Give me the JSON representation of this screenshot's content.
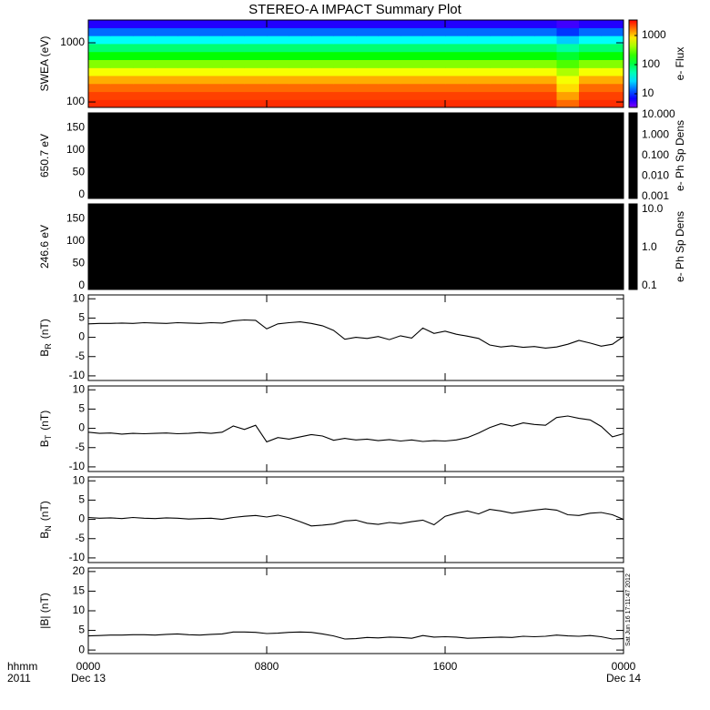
{
  "title": "STEREO-A IMPACT Summary Plot",
  "stamp": "Sat Jun 16 17:11:47 2012",
  "time_axis": {
    "label": "hhmm",
    "year": "2011"
  },
  "chart_data": [
    {
      "type": "spectrogram",
      "ylabel": "SWEA (eV)",
      "ylog": true,
      "ylim": [
        81,
        2425
      ],
      "yticks": [
        100,
        1000
      ],
      "xlim": [
        0,
        24
      ],
      "colormap": "rainbow",
      "xbins": [
        0,
        1,
        2,
        3,
        4,
        5,
        6,
        7,
        8,
        9,
        10,
        11,
        12,
        13,
        14,
        15,
        16,
        17,
        18,
        19,
        20,
        21,
        22,
        23,
        24
      ],
      "ybins": [
        81,
        110,
        150,
        205,
        280,
        380,
        520,
        710,
        970,
        1320,
        1800,
        2425
      ],
      "z": [
        [
          2600,
          2600,
          2600,
          2600,
          2600,
          2600,
          2600,
          2600,
          2600,
          2600,
          2600,
          2600,
          2600,
          2600,
          2600,
          2600,
          2600,
          2600,
          2600,
          2600,
          2600,
          1800,
          2600,
          2600
        ],
        [
          2300,
          2300,
          2300,
          2300,
          2300,
          2300,
          2300,
          2300,
          2300,
          2300,
          2300,
          2300,
          2300,
          2300,
          2300,
          2300,
          2300,
          2300,
          2300,
          2300,
          2300,
          1300,
          2300,
          2300
        ],
        [
          1800,
          1800,
          1800,
          1800,
          1800,
          1800,
          1800,
          1800,
          1800,
          1800,
          1800,
          1800,
          1800,
          1800,
          1800,
          1800,
          1800,
          1800,
          1800,
          1800,
          1800,
          900,
          1800,
          1800
        ],
        [
          1200,
          1200,
          1200,
          1200,
          1200,
          1200,
          1200,
          1200,
          1200,
          1200,
          1200,
          1200,
          1200,
          1200,
          1200,
          1200,
          1200,
          1200,
          1200,
          1200,
          1200,
          700,
          1200,
          1200
        ],
        [
          700,
          700,
          700,
          700,
          700,
          700,
          700,
          700,
          700,
          700,
          700,
          700,
          700,
          700,
          700,
          700,
          700,
          700,
          700,
          700,
          700,
          450,
          700,
          700
        ],
        [
          350,
          350,
          350,
          350,
          350,
          350,
          350,
          350,
          350,
          350,
          350,
          350,
          350,
          350,
          350,
          350,
          350,
          350,
          350,
          350,
          350,
          250,
          350,
          350
        ],
        [
          160,
          160,
          160,
          160,
          160,
          160,
          160,
          160,
          160,
          160,
          160,
          160,
          160,
          160,
          160,
          160,
          160,
          160,
          160,
          160,
          160,
          120,
          160,
          160
        ],
        [
          80,
          80,
          80,
          80,
          80,
          80,
          80,
          80,
          80,
          80,
          80,
          80,
          80,
          80,
          80,
          80,
          80,
          80,
          80,
          80,
          80,
          60,
          80,
          80
        ],
        [
          35,
          35,
          35,
          35,
          35,
          35,
          35,
          35,
          35,
          35,
          35,
          35,
          35,
          35,
          35,
          35,
          35,
          35,
          35,
          35,
          35,
          25,
          35,
          35
        ],
        [
          14,
          14,
          14,
          14,
          14,
          14,
          14,
          14,
          14,
          14,
          14,
          14,
          14,
          14,
          14,
          14,
          14,
          14,
          14,
          14,
          14,
          10,
          14,
          14
        ],
        [
          6,
          6,
          6,
          6,
          6,
          6,
          6,
          6,
          6,
          6,
          6,
          6,
          6,
          6,
          6,
          6,
          6,
          6,
          6,
          6,
          6,
          5,
          6,
          6
        ]
      ],
      "colorbar": {
        "label": "e- Flux",
        "zlim": [
          3.4,
          3400
        ],
        "zticks": [
          10,
          100,
          1000
        ]
      }
    },
    {
      "type": "spectrogram",
      "ylabel": "650.7 eV",
      "ylim": [
        -8,
        183
      ],
      "yticks": [
        0,
        50,
        100,
        150
      ],
      "xlim": [
        0,
        24
      ],
      "fill": "#000000",
      "colorbar": {
        "label": "e- Ph Sp Dens",
        "color": "#000000",
        "zlim": [
          0.0008,
          12
        ],
        "zticks": [
          {
            "value": 10,
            "label": "10.000"
          },
          {
            "value": 1,
            "label": "1.000"
          },
          {
            "value": 0.1,
            "label": "0.100"
          },
          {
            "value": 0.01,
            "label": "0.010"
          },
          {
            "value": 0.001,
            "label": "0.001"
          }
        ]
      }
    },
    {
      "type": "spectrogram",
      "ylabel": "246.6 eV",
      "ylim": [
        -8,
        183
      ],
      "yticks": [
        0,
        50,
        100,
        150
      ],
      "xlim": [
        0,
        24
      ],
      "fill": "#000000",
      "colorbar": {
        "label": "e- Ph Sp Dens",
        "color": "#000000",
        "zlim": [
          0.08,
          13.8
        ],
        "zticks": [
          {
            "value": 10,
            "label": "10.0"
          },
          {
            "value": 1,
            "label": "1.0"
          },
          {
            "value": 0.1,
            "label": "0.1"
          }
        ]
      }
    },
    {
      "type": "line",
      "ylabel": {
        "base": "B",
        "sub": "R",
        "unit": "(nT)"
      },
      "ylim": [
        -11.2,
        11
      ],
      "yticks": [
        -10,
        -5,
        0,
        5,
        10
      ],
      "xlim": [
        0,
        24
      ],
      "color": "#000000",
      "x": [
        0,
        0.5,
        1,
        1.5,
        2,
        2.5,
        3,
        3.5,
        4,
        4.5,
        5,
        5.5,
        6,
        6.5,
        7,
        7.5,
        8,
        8.5,
        9,
        9.5,
        10,
        10.5,
        11,
        11.5,
        12,
        12.5,
        13,
        13.5,
        14,
        14.5,
        15,
        15.5,
        16,
        16.5,
        17,
        17.5,
        18,
        18.5,
        19,
        19.5,
        20,
        20.5,
        21,
        21.5,
        22,
        22.5,
        23,
        23.5,
        24
      ],
      "values": [
        3.5,
        3.6,
        3.6,
        3.7,
        3.6,
        3.8,
        3.7,
        3.6,
        3.8,
        3.7,
        3.6,
        3.8,
        3.7,
        4.3,
        4.5,
        4.4,
        2.2,
        3.5,
        3.8,
        4.0,
        3.6,
        3.0,
        1.8,
        -0.5,
        0.0,
        -0.3,
        0.2,
        -0.6,
        0.4,
        -0.2,
        2.4,
        1.0,
        1.6,
        0.8,
        0.3,
        -0.3,
        -2.0,
        -2.5,
        -2.2,
        -2.6,
        -2.4,
        -2.8,
        -2.5,
        -1.8,
        -0.8,
        -1.5,
        -2.3,
        -1.8,
        0.2
      ]
    },
    {
      "type": "line",
      "ylabel": {
        "base": "B",
        "sub": "T",
        "unit": "(nT)"
      },
      "ylim": [
        -11.2,
        11
      ],
      "yticks": [
        -10,
        -5,
        0,
        5,
        10
      ],
      "xlim": [
        0,
        24
      ],
      "color": "#000000",
      "x": [
        0,
        0.5,
        1,
        1.5,
        2,
        2.5,
        3,
        3.5,
        4,
        4.5,
        5,
        5.5,
        6,
        6.5,
        7,
        7.5,
        8,
        8.5,
        9,
        9.5,
        10,
        10.5,
        11,
        11.5,
        12,
        12.5,
        13,
        13.5,
        14,
        14.5,
        15,
        15.5,
        16,
        16.5,
        17,
        17.5,
        18,
        18.5,
        19,
        19.5,
        20,
        20.5,
        21,
        21.5,
        22,
        22.5,
        23,
        23.5,
        24
      ],
      "values": [
        -1.0,
        -1.3,
        -1.2,
        -1.5,
        -1.3,
        -1.4,
        -1.3,
        -1.2,
        -1.4,
        -1.3,
        -1.1,
        -1.3,
        -1.0,
        0.6,
        -0.3,
        0.8,
        -3.5,
        -2.4,
        -2.8,
        -2.2,
        -1.6,
        -2.0,
        -3.1,
        -2.6,
        -3.0,
        -2.8,
        -3.2,
        -2.9,
        -3.3,
        -3.0,
        -3.4,
        -3.2,
        -3.3,
        -3.0,
        -2.4,
        -1.2,
        0.2,
        1.2,
        0.6,
        1.4,
        1.0,
        0.8,
        2.8,
        3.2,
        2.6,
        2.2,
        0.5,
        -2.2,
        -1.4
      ]
    },
    {
      "type": "line",
      "ylabel": {
        "base": "B",
        "sub": "N",
        "unit": "(nT)"
      },
      "ylim": [
        -11.2,
        11
      ],
      "yticks": [
        -10,
        -5,
        0,
        5,
        10
      ],
      "xlim": [
        0,
        24
      ],
      "color": "#000000",
      "x": [
        0,
        0.5,
        1,
        1.5,
        2,
        2.5,
        3,
        3.5,
        4,
        4.5,
        5,
        5.5,
        6,
        6.5,
        7,
        7.5,
        8,
        8.5,
        9,
        9.5,
        10,
        10.5,
        11,
        11.5,
        12,
        12.5,
        13,
        13.5,
        14,
        14.5,
        15,
        15.5,
        16,
        16.5,
        17,
        17.5,
        18,
        18.5,
        19,
        19.5,
        20,
        20.5,
        21,
        21.5,
        22,
        22.5,
        23,
        23.5,
        24
      ],
      "values": [
        0.5,
        0.3,
        0.4,
        0.2,
        0.5,
        0.3,
        0.2,
        0.4,
        0.3,
        0.1,
        0.2,
        0.3,
        0.0,
        0.5,
        0.8,
        1.0,
        0.6,
        1.1,
        0.4,
        -0.6,
        -1.7,
        -1.5,
        -1.2,
        -0.4,
        -0.2,
        -1.0,
        -1.3,
        -0.8,
        -1.1,
        -0.6,
        -0.2,
        -1.4,
        0.8,
        1.6,
        2.2,
        1.4,
        2.6,
        2.2,
        1.6,
        2.0,
        2.4,
        2.7,
        2.4,
        1.2,
        1.0,
        1.6,
        1.8,
        1.2,
        0.0
      ]
    },
    {
      "type": "line",
      "ylabel": "|B| (nT)",
      "ylim": [
        -0.9,
        20.9
      ],
      "yticks": [
        0,
        5,
        10,
        15,
        20
      ],
      "xlim": [
        0,
        24
      ],
      "color": "#000000",
      "x": [
        0,
        0.5,
        1,
        1.5,
        2,
        2.5,
        3,
        3.5,
        4,
        4.5,
        5,
        5.5,
        6,
        6.5,
        7,
        7.5,
        8,
        8.5,
        9,
        9.5,
        10,
        10.5,
        11,
        11.5,
        12,
        12.5,
        13,
        13.5,
        14,
        14.5,
        15,
        15.5,
        16,
        16.5,
        17,
        17.5,
        18,
        18.5,
        19,
        19.5,
        20,
        20.5,
        21,
        21.5,
        22,
        22.5,
        23,
        23.5,
        24
      ],
      "values": [
        3.6,
        3.7,
        3.8,
        3.8,
        3.9,
        3.9,
        3.8,
        4.0,
        4.1,
        3.9,
        3.8,
        4.0,
        4.1,
        4.6,
        4.6,
        4.5,
        4.2,
        4.3,
        4.5,
        4.6,
        4.5,
        4.1,
        3.6,
        2.8,
        2.9,
        3.2,
        3.1,
        3.3,
        3.2,
        3.0,
        3.7,
        3.3,
        3.4,
        3.3,
        3.0,
        3.1,
        3.2,
        3.3,
        3.2,
        3.5,
        3.4,
        3.5,
        3.8,
        3.6,
        3.5,
        3.7,
        3.4,
        2.8,
        2.9
      ],
      "xticks": [
        {
          "value": 0,
          "label": "0000"
        },
        {
          "value": 8,
          "label": "0800"
        },
        {
          "value": 16,
          "label": "1600"
        },
        {
          "value": 24,
          "label": "0000"
        }
      ],
      "xticks_sub": [
        "Dec 13",
        null,
        null,
        "Dec 14"
      ]
    }
  ]
}
